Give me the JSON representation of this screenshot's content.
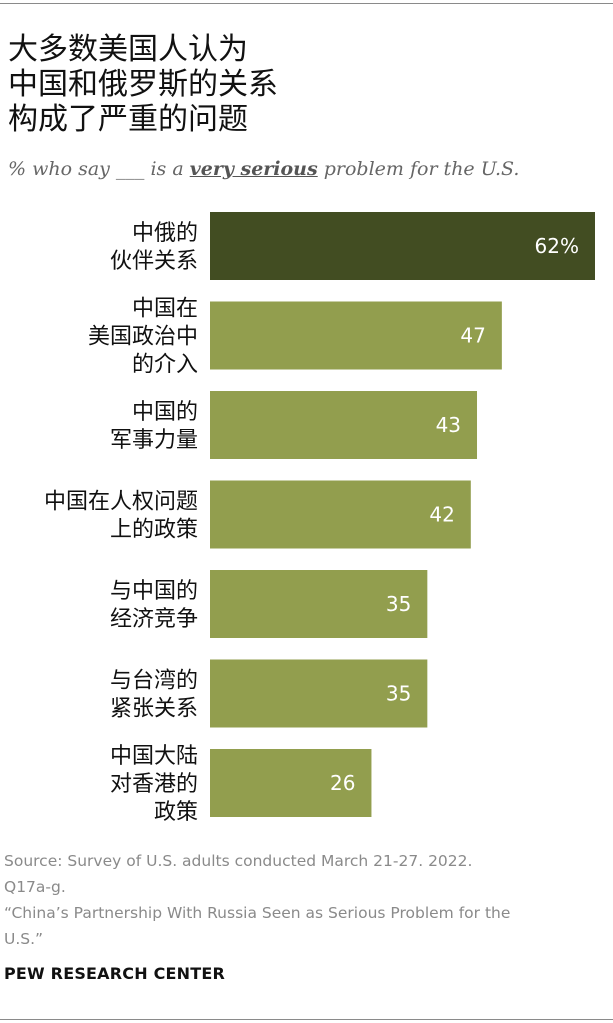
{
  "title_lines": [
    "大多数美国人认为",
    "中国和俄罗斯的关系",
    "构成了严重的问题"
  ],
  "subtitle": {
    "prefix": "% who say ___ is a ",
    "emphasis": "very serious",
    "suffix": " problem for the U.S."
  },
  "chart_data": {
    "type": "bar",
    "orientation": "horizontal",
    "categories": [
      [
        "中俄的",
        "伙伴关系"
      ],
      [
        "中国在",
        "美国政治中",
        "的介入"
      ],
      [
        "中国的",
        "军事力量"
      ],
      [
        "中国在人权问题",
        "上的政策"
      ],
      [
        "与中国的",
        "经济竞争"
      ],
      [
        "与台湾的",
        "紧张关系"
      ],
      [
        "中国大陆",
        "对香港的",
        "政策"
      ]
    ],
    "values": [
      62,
      47,
      43,
      42,
      35,
      35,
      26
    ],
    "value_labels": [
      "62%",
      "47",
      "43",
      "42",
      "35",
      "35",
      "26"
    ],
    "xlim": [
      0,
      62
    ],
    "colors": {
      "highlight": "#424d22",
      "default": "#929e4e"
    },
    "legend": "none",
    "grid": false
  },
  "source_lines": [
    "Source: Survey of U.S. adults conducted March 21-27. 2022.",
    "Q17a-g.",
    "“China’s Partnership With Russia Seen as Serious Problem for the",
    "U.S.”"
  ],
  "organization": "PEW RESEARCH CENTER"
}
